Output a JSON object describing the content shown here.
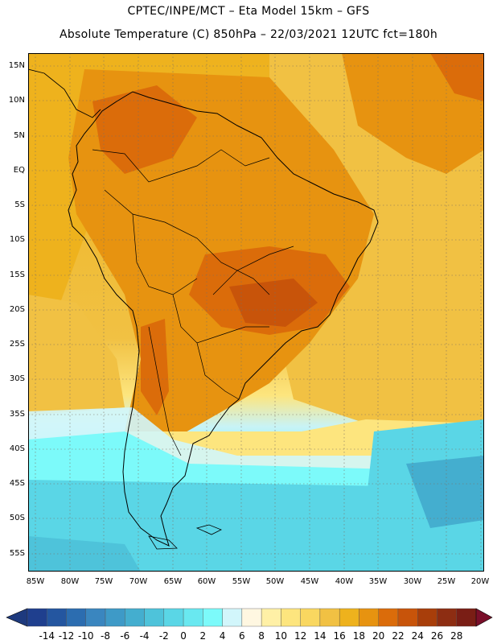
{
  "header": {
    "line1": "CPTEC/INPE/MCT –  Eta Model 15km – GFS",
    "line2": "Absolute Temperature (C) 850hPa – 22/03/2021 12UTC fct=180h"
  },
  "map": {
    "variable": "Absolute Temperature",
    "unit": "C",
    "level": "850hPa",
    "lat_labels": [
      "15N",
      "10N",
      "5N",
      "EQ",
      "5S",
      "10S",
      "15S",
      "20S",
      "25S",
      "30S",
      "35S",
      "40S",
      "45S",
      "50S",
      "55S"
    ],
    "lon_labels": [
      "85W",
      "80W",
      "75W",
      "70W",
      "65W",
      "60W",
      "55W",
      "50W",
      "45W",
      "40W",
      "35W",
      "30W",
      "25W",
      "20W"
    ]
  },
  "colorbar": {
    "labels": [
      "-14",
      "-12",
      "-10",
      "-8",
      "-6",
      "-4",
      "-2",
      "0",
      "2",
      "4",
      "6",
      "8",
      "10",
      "12",
      "14",
      "16",
      "18",
      "20",
      "22",
      "24",
      "26",
      "28"
    ],
    "colors": [
      "#1f3f8e",
      "#2456a0",
      "#2c6db0",
      "#3a86bf",
      "#3e9ac7",
      "#44aecf",
      "#4ec3da",
      "#5ad6e6",
      "#69e8f0",
      "#7cfafa",
      "#d2f6fb",
      "#fff7e1",
      "#fff0a6",
      "#fde57e",
      "#f9d760",
      "#f1c143",
      "#eeb21d",
      "#e79310",
      "#db6c0a",
      "#c8540a",
      "#a83e0a",
      "#8d2d12",
      "#7a1e15"
    ],
    "low_color": "#1e3a7e",
    "high_color": "#7a0f2a"
  }
}
